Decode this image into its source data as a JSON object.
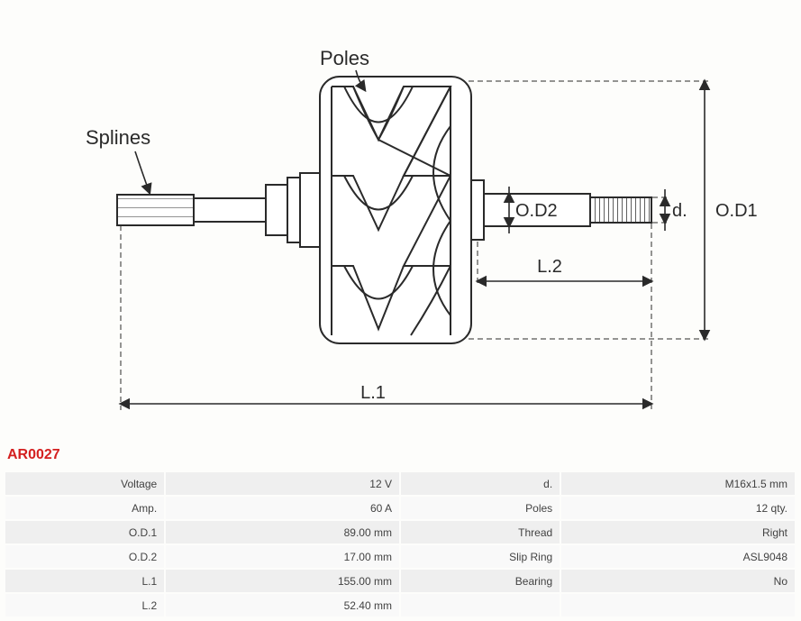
{
  "partNumber": "AR0027",
  "diagram": {
    "labels": {
      "poles": "Poles",
      "splines": "Splines",
      "l1": "L.1",
      "l2": "L.2",
      "od1": "O.D1",
      "od2": "O.D2",
      "d": "d."
    },
    "colors": {
      "stroke": "#2a2a2a",
      "fill_light": "#ffffff",
      "bg": "#fdfdfb"
    },
    "strokeWidth": 2,
    "dashPattern": "6 4"
  },
  "specs": {
    "left": [
      {
        "label": "Voltage",
        "value": "12 V"
      },
      {
        "label": "Amp.",
        "value": "60 A"
      },
      {
        "label": "O.D.1",
        "value": "89.00 mm"
      },
      {
        "label": "O.D.2",
        "value": "17.00 mm"
      },
      {
        "label": "L.1",
        "value": "155.00 mm"
      },
      {
        "label": "L.2",
        "value": "52.40 mm"
      }
    ],
    "right": [
      {
        "label": "d.",
        "value": "M16x1.5 mm"
      },
      {
        "label": "Poles",
        "value": "12 qty."
      },
      {
        "label": "Thread",
        "value": "Right"
      },
      {
        "label": "Slip Ring",
        "value": "ASL9048"
      },
      {
        "label": "Bearing",
        "value": "No"
      },
      {
        "label": "",
        "value": ""
      }
    ]
  }
}
